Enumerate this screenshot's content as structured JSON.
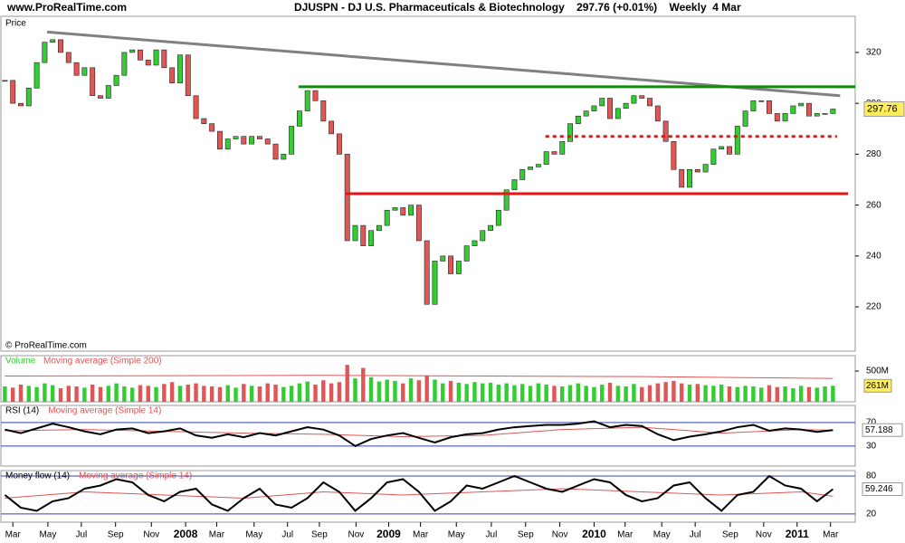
{
  "header": {
    "site": "www.ProRealTime.com",
    "title": "DJUSPN - DJ U.S. Pharmaceuticals & Biotechnology    297.76 (+0.01%)    Weekly  4 Mar",
    "copyright": "© ProRealTime.com"
  },
  "chart_data": [
    {
      "type": "candlestick",
      "title": "Price",
      "up_color": "#33cc33",
      "down_color": "#e05555",
      "close": [
        309,
        300,
        299,
        306,
        316,
        324,
        325,
        320,
        316,
        311,
        314,
        303,
        302,
        307,
        311,
        320,
        321,
        317,
        315,
        321,
        314,
        308,
        319,
        303,
        294,
        292,
        289,
        282,
        286,
        287,
        284,
        287,
        286,
        284,
        278,
        280,
        291,
        297,
        305,
        301,
        293,
        288,
        280,
        246,
        252,
        244,
        250,
        252,
        258,
        259,
        256,
        260,
        246,
        221,
        238,
        240,
        233,
        238,
        244,
        246,
        250,
        252,
        258,
        266,
        270,
        274,
        275,
        276,
        281,
        280,
        285,
        292,
        295,
        297,
        299,
        302,
        294,
        298,
        300,
        303,
        302,
        299,
        293,
        285,
        274,
        267,
        274,
        273,
        276,
        282,
        283,
        280,
        291,
        297,
        301,
        301,
        296,
        293,
        296,
        299,
        300,
        295,
        296,
        296,
        297.76
      ],
      "xlim": [
        -0.5,
        106.8
      ],
      "ylim": [
        202.6,
        334.2
      ],
      "yticks": [
        220,
        240,
        260,
        280,
        300,
        320
      ],
      "xticks": [
        {
          "value": 1,
          "label": "Mar"
        },
        {
          "value": 5.4,
          "label": "May"
        },
        {
          "value": 9.6,
          "label": "Jul"
        },
        {
          "value": 13.9,
          "label": "Sep"
        },
        {
          "value": 18.4,
          "label": "Nov"
        },
        {
          "value": 22.7,
          "label": "2008"
        },
        {
          "value": 26.6,
          "label": "Mar"
        },
        {
          "value": 31.3,
          "label": "May"
        },
        {
          "value": 35.5,
          "label": "Jul"
        },
        {
          "value": 39.5,
          "label": "Sep"
        },
        {
          "value": 44.1,
          "label": "Nov"
        },
        {
          "value": 48.2,
          "label": "2009"
        },
        {
          "value": 52.2,
          "label": "Mar"
        },
        {
          "value": 56.7,
          "label": "May"
        },
        {
          "value": 61.1,
          "label": "Jul"
        },
        {
          "value": 65.4,
          "label": "Sep"
        },
        {
          "value": 69.7,
          "label": "Nov"
        },
        {
          "value": 74,
          "label": "2010"
        },
        {
          "value": 77.9,
          "label": "Mar"
        },
        {
          "value": 82.5,
          "label": "May"
        },
        {
          "value": 86.7,
          "label": "Jul"
        },
        {
          "value": 91.1,
          "label": "Sep"
        },
        {
          "value": 95.3,
          "label": "Nov"
        },
        {
          "value": 99.5,
          "label": "2011"
        },
        {
          "value": 103.7,
          "label": "Mar"
        }
      ],
      "lines": [
        {
          "color": "#808080",
          "dashed": false,
          "x": [
            5.3,
            104.9
          ],
          "y": [
            328,
            303
          ]
        },
        {
          "color": "#118811",
          "dashed": false,
          "x": [
            36.9,
            106.8
          ],
          "y": [
            306.5,
            306.5
          ]
        },
        {
          "color": "#ee1111",
          "dashed": true,
          "x": [
            67.9,
            104.5
          ],
          "y": [
            287,
            287
          ]
        },
        {
          "color": "#ee1111",
          "dashed": false,
          "x": [
            42.8,
            105.9
          ],
          "y": [
            264.5,
            264.5
          ]
        }
      ]
    },
    {
      "type": "bar",
      "title": "Volume",
      "ma_title": "Moving average (Simple 200)",
      "color": "#33cc33",
      "ma_color": "#e05555",
      "values": [
        250,
        230,
        280,
        260,
        240,
        300,
        270,
        220,
        260,
        250,
        230,
        280,
        240,
        260,
        300,
        250,
        230,
        270,
        260,
        240,
        290,
        320,
        260,
        280,
        300,
        260,
        250,
        240,
        270,
        230,
        290,
        260,
        250,
        300,
        280,
        240,
        260,
        300,
        330,
        280,
        350,
        300,
        320,
        600,
        380,
        550,
        400,
        330,
        360,
        340,
        300,
        380,
        350,
        420,
        360,
        300,
        340,
        310,
        290,
        320,
        300,
        310,
        280,
        300,
        270,
        290,
        260,
        300,
        280,
        260,
        250,
        270,
        300,
        260,
        240,
        280,
        310,
        260,
        250,
        290,
        240,
        270,
        300,
        320,
        340,
        300,
        280,
        290,
        270,
        260,
        280,
        250,
        240,
        260,
        250,
        230,
        270,
        240,
        250,
        220,
        260,
        240,
        230,
        250,
        261
      ],
      "last_label": "261M",
      "ma_x": [
        0,
        40,
        80,
        104
      ],
      "ma_values": [
        420,
        430,
        410,
        380
      ],
      "ylim": [
        0,
        750
      ],
      "yticks": [
        {
          "value": 500,
          "label": "500M"
        }
      ]
    },
    {
      "type": "line",
      "title": "RSI (14)",
      "ma_title": "Moving average (Simple 14)",
      "color": "#000000",
      "ma_color": "#e05555",
      "tick_color": "#3344aa",
      "x": [
        0,
        2,
        4,
        6,
        8,
        10,
        12,
        14,
        16,
        18,
        20,
        22,
        24,
        26,
        28,
        30,
        32,
        34,
        36,
        38,
        40,
        42,
        44,
        46,
        48,
        50,
        52,
        54,
        56,
        58,
        60,
        62,
        64,
        66,
        68,
        70,
        72,
        74,
        76,
        78,
        80,
        82,
        84,
        86,
        88,
        90,
        92,
        94,
        96,
        98,
        100,
        102,
        104
      ],
      "values": [
        58,
        52,
        60,
        68,
        62,
        55,
        50,
        58,
        60,
        52,
        55,
        60,
        48,
        44,
        50,
        45,
        52,
        48,
        55,
        62,
        58,
        48,
        30,
        42,
        48,
        52,
        44,
        36,
        45,
        50,
        52,
        58,
        62,
        64,
        66,
        66,
        68,
        72,
        62,
        66,
        64,
        50,
        40,
        46,
        50,
        55,
        62,
        66,
        56,
        60,
        58,
        54,
        57.188
      ],
      "ma_x": [
        0,
        10,
        20,
        30,
        40,
        50,
        60,
        70,
        80,
        90,
        100,
        104
      ],
      "ma_values": [
        56,
        58,
        55,
        52,
        50,
        46,
        48,
        58,
        62,
        52,
        58,
        57
      ],
      "ylim": [
        -4,
        99
      ],
      "yticks": [
        30,
        70
      ]
    },
    {
      "type": "line",
      "title": "Money flow (14)",
      "ma_title": "Moving average (Simple 14)",
      "color": "#000000",
      "ma_color": "#e05555",
      "tick_color": "#3344aa",
      "x": [
        0,
        2,
        4,
        6,
        8,
        10,
        12,
        14,
        16,
        18,
        20,
        22,
        24,
        26,
        28,
        30,
        32,
        34,
        36,
        38,
        40,
        42,
        44,
        46,
        48,
        50,
        52,
        54,
        56,
        58,
        60,
        62,
        64,
        66,
        68,
        70,
        72,
        74,
        76,
        78,
        80,
        82,
        84,
        86,
        88,
        90,
        92,
        94,
        96,
        98,
        100,
        102,
        104
      ],
      "values": [
        50,
        30,
        25,
        40,
        45,
        60,
        65,
        75,
        70,
        50,
        40,
        55,
        60,
        35,
        25,
        45,
        60,
        35,
        30,
        45,
        70,
        55,
        25,
        45,
        70,
        75,
        55,
        25,
        40,
        65,
        60,
        70,
        80,
        70,
        60,
        55,
        65,
        75,
        70,
        50,
        40,
        45,
        65,
        70,
        45,
        25,
        50,
        55,
        80,
        65,
        60,
        40,
        59.246
      ],
      "ma_x": [
        0,
        10,
        20,
        30,
        40,
        50,
        60,
        70,
        80,
        90,
        100,
        104
      ],
      "ma_values": [
        45,
        55,
        50,
        45,
        55,
        50,
        55,
        60,
        55,
        50,
        55,
        48
      ],
      "ylim": [
        7,
        88.6
      ],
      "yticks": [
        20,
        80
      ]
    }
  ]
}
